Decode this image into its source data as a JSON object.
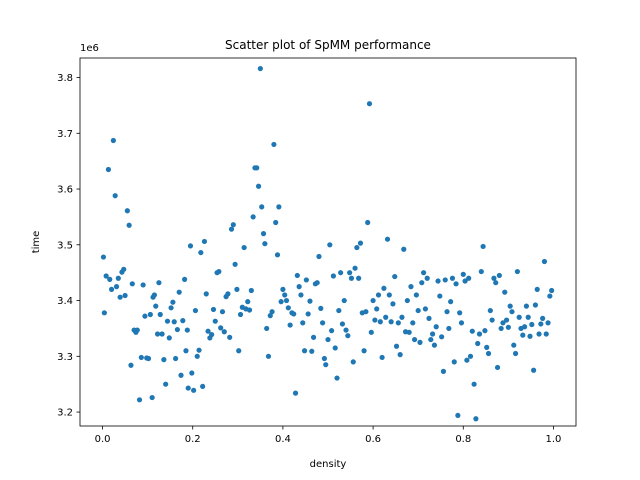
{
  "chart_data": {
    "type": "scatter",
    "title": "Scatter plot of SpMM performance",
    "xlabel": "density",
    "ylabel": "time",
    "y_offset_label": "1e6",
    "xlim": [
      -0.05,
      1.05
    ],
    "ylim": [
      3.175,
      3.835
    ],
    "x_ticks": [
      0.0,
      0.2,
      0.4,
      0.6,
      0.8,
      1.0
    ],
    "x_tick_labels": [
      "0.0",
      "0.2",
      "0.4",
      "0.6",
      "0.8",
      "1.0"
    ],
    "y_ticks": [
      3.2,
      3.3,
      3.4,
      3.5,
      3.6,
      3.7,
      3.8
    ],
    "y_tick_labels": [
      "3.2",
      "3.3",
      "3.4",
      "3.5",
      "3.6",
      "3.7",
      "3.8"
    ],
    "marker_color": "#1f77b4",
    "grid": false,
    "series": [
      {
        "points": [
          [
            0.002,
            3.478
          ],
          [
            0.004,
            3.378
          ],
          [
            0.008,
            3.444
          ],
          [
            0.013,
            3.635
          ],
          [
            0.016,
            3.438
          ],
          [
            0.02,
            3.42
          ],
          [
            0.024,
            3.687
          ],
          [
            0.028,
            3.588
          ],
          [
            0.031,
            3.425
          ],
          [
            0.035,
            3.44
          ],
          [
            0.039,
            3.406
          ],
          [
            0.043,
            3.451
          ],
          [
            0.047,
            3.456
          ],
          [
            0.05,
            3.409
          ],
          [
            0.055,
            3.561
          ],
          [
            0.059,
            3.535
          ],
          [
            0.063,
            3.284
          ],
          [
            0.066,
            3.43
          ],
          [
            0.07,
            3.347
          ],
          [
            0.074,
            3.343
          ],
          [
            0.077,
            3.347
          ],
          [
            0.082,
            3.222
          ],
          [
            0.086,
            3.298
          ],
          [
            0.09,
            3.428
          ],
          [
            0.094,
            3.372
          ],
          [
            0.098,
            3.297
          ],
          [
            0.102,
            3.296
          ],
          [
            0.106,
            3.375
          ],
          [
            0.11,
            3.226
          ],
          [
            0.112,
            3.406
          ],
          [
            0.115,
            3.41
          ],
          [
            0.118,
            3.39
          ],
          [
            0.122,
            3.34
          ],
          [
            0.125,
            3.432
          ],
          [
            0.128,
            3.375
          ],
          [
            0.132,
            3.34
          ],
          [
            0.136,
            3.294
          ],
          [
            0.14,
            3.25
          ],
          [
            0.144,
            3.363
          ],
          [
            0.148,
            3.333
          ],
          [
            0.152,
            3.387
          ],
          [
            0.156,
            3.397
          ],
          [
            0.159,
            3.362
          ],
          [
            0.162,
            3.296
          ],
          [
            0.166,
            3.348
          ],
          [
            0.17,
            3.415
          ],
          [
            0.174,
            3.266
          ],
          [
            0.178,
            3.364
          ],
          [
            0.182,
            3.438
          ],
          [
            0.185,
            3.31
          ],
          [
            0.188,
            3.347
          ],
          [
            0.19,
            3.243
          ],
          [
            0.195,
            3.498
          ],
          [
            0.198,
            3.27
          ],
          [
            0.202,
            3.239
          ],
          [
            0.206,
            3.382
          ],
          [
            0.21,
            3.3
          ],
          [
            0.214,
            3.311
          ],
          [
            0.218,
            3.486
          ],
          [
            0.222,
            3.246
          ],
          [
            0.226,
            3.506
          ],
          [
            0.23,
            3.412
          ],
          [
            0.234,
            3.345
          ],
          [
            0.238,
            3.333
          ],
          [
            0.242,
            3.339
          ],
          [
            0.246,
            3.384
          ],
          [
            0.25,
            3.363
          ],
          [
            0.254,
            3.45
          ],
          [
            0.258,
            3.452
          ],
          [
            0.262,
            3.351
          ],
          [
            0.266,
            3.38
          ],
          [
            0.27,
            3.344
          ],
          [
            0.274,
            3.407
          ],
          [
            0.278,
            3.412
          ],
          [
            0.282,
            3.334
          ],
          [
            0.286,
            3.528
          ],
          [
            0.29,
            3.536
          ],
          [
            0.294,
            3.465
          ],
          [
            0.298,
            3.42
          ],
          [
            0.302,
            3.31
          ],
          [
            0.306,
            3.375
          ],
          [
            0.31,
            3.388
          ],
          [
            0.314,
            3.495
          ],
          [
            0.318,
            3.385
          ],
          [
            0.322,
            3.398
          ],
          [
            0.326,
            3.383
          ],
          [
            0.33,
            3.418
          ],
          [
            0.334,
            3.55
          ],
          [
            0.338,
            3.638
          ],
          [
            0.342,
            3.638
          ],
          [
            0.346,
            3.605
          ],
          [
            0.35,
            3.816
          ],
          [
            0.353,
            3.568
          ],
          [
            0.357,
            3.52
          ],
          [
            0.36,
            3.502
          ],
          [
            0.364,
            3.35
          ],
          [
            0.368,
            3.3
          ],
          [
            0.372,
            3.373
          ],
          [
            0.376,
            3.38
          ],
          [
            0.38,
            3.68
          ],
          [
            0.384,
            3.54
          ],
          [
            0.388,
            3.482
          ],
          [
            0.391,
            3.568
          ],
          [
            0.396,
            3.398
          ],
          [
            0.4,
            3.42
          ],
          [
            0.404,
            3.41
          ],
          [
            0.408,
            3.4
          ],
          [
            0.412,
            3.387
          ],
          [
            0.416,
            3.356
          ],
          [
            0.42,
            3.378
          ],
          [
            0.424,
            3.376
          ],
          [
            0.428,
            3.234
          ],
          [
            0.432,
            3.445
          ],
          [
            0.436,
            3.425
          ],
          [
            0.44,
            3.41
          ],
          [
            0.444,
            3.36
          ],
          [
            0.448,
            3.31
          ],
          [
            0.452,
            3.437
          ],
          [
            0.456,
            3.376
          ],
          [
            0.46,
            3.399
          ],
          [
            0.464,
            3.309
          ],
          [
            0.468,
            3.334
          ],
          [
            0.472,
            3.43
          ],
          [
            0.476,
            3.432
          ],
          [
            0.48,
            3.479
          ],
          [
            0.484,
            3.386
          ],
          [
            0.488,
            3.36
          ],
          [
            0.492,
            3.296
          ],
          [
            0.495,
            3.285
          ],
          [
            0.5,
            3.33
          ],
          [
            0.504,
            3.5
          ],
          [
            0.508,
            3.346
          ],
          [
            0.512,
            3.444
          ],
          [
            0.516,
            3.315
          ],
          [
            0.52,
            3.261
          ],
          [
            0.524,
            3.382
          ],
          [
            0.528,
            3.45
          ],
          [
            0.532,
            3.358
          ],
          [
            0.536,
            3.4
          ],
          [
            0.54,
            3.347
          ],
          [
            0.544,
            3.337
          ],
          [
            0.548,
            3.45
          ],
          [
            0.552,
            3.44
          ],
          [
            0.556,
            3.29
          ],
          [
            0.56,
            3.458
          ],
          [
            0.564,
            3.495
          ],
          [
            0.568,
            3.44
          ],
          [
            0.572,
            3.503
          ],
          [
            0.576,
            3.378
          ],
          [
            0.58,
            3.31
          ],
          [
            0.584,
            3.38
          ],
          [
            0.588,
            3.54
          ],
          [
            0.592,
            3.753
          ],
          [
            0.596,
            3.343
          ],
          [
            0.6,
            3.4
          ],
          [
            0.604,
            3.365
          ],
          [
            0.608,
            3.385
          ],
          [
            0.612,
            3.41
          ],
          [
            0.616,
            3.362
          ],
          [
            0.62,
            3.298
          ],
          [
            0.624,
            3.422
          ],
          [
            0.628,
            3.37
          ],
          [
            0.632,
            3.51
          ],
          [
            0.636,
            3.41
          ],
          [
            0.64,
            3.362
          ],
          [
            0.644,
            3.394
          ],
          [
            0.648,
            3.443
          ],
          [
            0.652,
            3.318
          ],
          [
            0.656,
            3.36
          ],
          [
            0.66,
            3.303
          ],
          [
            0.664,
            3.37
          ],
          [
            0.668,
            3.492
          ],
          [
            0.672,
            3.344
          ],
          [
            0.676,
            3.4
          ],
          [
            0.68,
            3.343
          ],
          [
            0.684,
            3.425
          ],
          [
            0.688,
            3.36
          ],
          [
            0.692,
            3.33
          ],
          [
            0.696,
            3.41
          ],
          [
            0.7,
            3.382
          ],
          [
            0.704,
            3.325
          ],
          [
            0.708,
            3.432
          ],
          [
            0.712,
            3.45
          ],
          [
            0.716,
            3.385
          ],
          [
            0.72,
            3.44
          ],
          [
            0.724,
            3.368
          ],
          [
            0.728,
            3.33
          ],
          [
            0.732,
            3.34
          ],
          [
            0.736,
            3.32
          ],
          [
            0.74,
            3.353
          ],
          [
            0.744,
            3.435
          ],
          [
            0.748,
            3.408
          ],
          [
            0.752,
            3.335
          ],
          [
            0.756,
            3.273
          ],
          [
            0.76,
            3.437
          ],
          [
            0.764,
            3.38
          ],
          [
            0.768,
            3.35
          ],
          [
            0.772,
            3.398
          ],
          [
            0.776,
            3.44
          ],
          [
            0.78,
            3.29
          ],
          [
            0.784,
            3.43
          ],
          [
            0.788,
            3.194
          ],
          [
            0.792,
            3.378
          ],
          [
            0.796,
            3.36
          ],
          [
            0.8,
            3.447
          ],
          [
            0.804,
            3.435
          ],
          [
            0.808,
            3.293
          ],
          [
            0.812,
            3.44
          ],
          [
            0.816,
            3.3
          ],
          [
            0.82,
            3.345
          ],
          [
            0.824,
            3.25
          ],
          [
            0.828,
            3.188
          ],
          [
            0.832,
            3.323
          ],
          [
            0.836,
            3.34
          ],
          [
            0.84,
            3.452
          ],
          [
            0.844,
            3.497
          ],
          [
            0.848,
            3.346
          ],
          [
            0.852,
            3.316
          ],
          [
            0.856,
            3.305
          ],
          [
            0.86,
            3.382
          ],
          [
            0.864,
            3.365
          ],
          [
            0.868,
            3.44
          ],
          [
            0.872,
            3.432
          ],
          [
            0.876,
            3.28
          ],
          [
            0.88,
            3.445
          ],
          [
            0.884,
            3.35
          ],
          [
            0.888,
            3.36
          ],
          [
            0.892,
            3.415
          ],
          [
            0.896,
            3.365
          ],
          [
            0.9,
            3.352
          ],
          [
            0.904,
            3.39
          ],
          [
            0.908,
            3.38
          ],
          [
            0.912,
            3.32
          ],
          [
            0.916,
            3.305
          ],
          [
            0.92,
            3.452
          ],
          [
            0.924,
            3.37
          ],
          [
            0.928,
            3.35
          ],
          [
            0.932,
            3.338
          ],
          [
            0.936,
            3.353
          ],
          [
            0.94,
            3.39
          ],
          [
            0.944,
            3.37
          ],
          [
            0.948,
            3.336
          ],
          [
            0.952,
            3.357
          ],
          [
            0.956,
            3.275
          ],
          [
            0.96,
            3.392
          ],
          [
            0.964,
            3.42
          ],
          [
            0.968,
            3.34
          ],
          [
            0.972,
            3.358
          ],
          [
            0.976,
            3.368
          ],
          [
            0.98,
            3.47
          ],
          [
            0.984,
            3.34
          ],
          [
            0.988,
            3.36
          ],
          [
            0.992,
            3.408
          ],
          [
            0.996,
            3.418
          ]
        ]
      }
    ]
  }
}
